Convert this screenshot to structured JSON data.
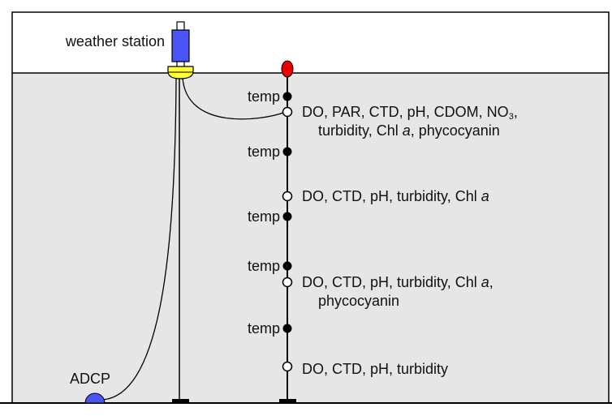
{
  "labels": {
    "weather_station": "weather station",
    "adcp": "ADCP",
    "temp": "temp"
  },
  "sensors": {
    "s1_line1_a": "DO, PAR, CTD, pH, CDOM, NO",
    "s1_line1_sub": "3",
    "s1_line1_b": ",",
    "s1_line2_a": "turbidity, Chl ",
    "s1_line2_it": "a",
    "s1_line2_b": ", phycocyanin",
    "s2_a": "DO, CTD, pH, turbidity, Chl ",
    "s2_it": "a",
    "s3_line1_a": "DO, CTD, pH, turbidity, Chl ",
    "s3_line1_it": "a",
    "s3_line1_b": ",",
    "s3_line2": "phycocyanin",
    "s4": "DO, CTD, pH, turbidity"
  },
  "colors": {
    "water": "#e6e6e6",
    "weather_station": "#4b55f5",
    "buoy": "#ffff33",
    "surface_float": "#ee0000",
    "adcp": "#4b55f5",
    "temp_sensor": "#000000",
    "multi_sensor": "#ffffff"
  }
}
